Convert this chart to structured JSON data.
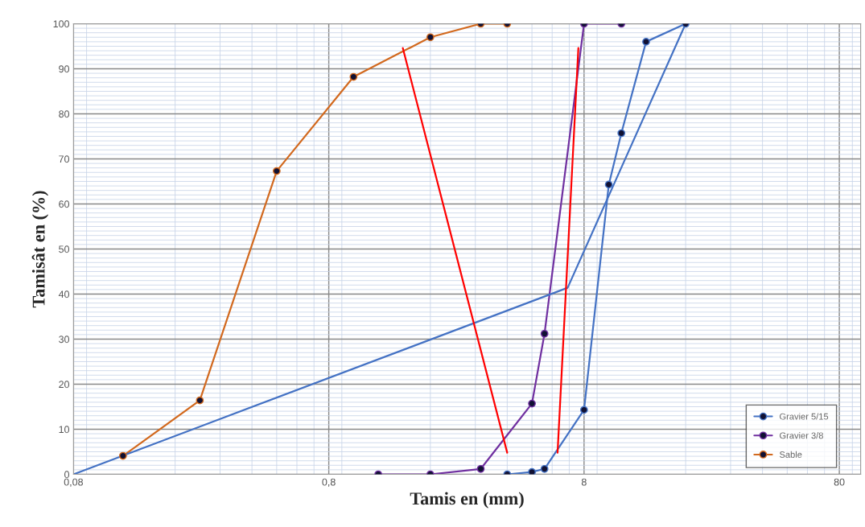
{
  "chart_data": {
    "type": "line",
    "xlabel": "Tamis en (mm)",
    "ylabel": "Tamisât en (%)",
    "log": "x",
    "xlim": [
      0.08,
      97
    ],
    "xticks": [
      {
        "value": 0.08,
        "label": "0,08"
      },
      {
        "value": 0.8,
        "label": "0,8"
      },
      8,
      80
    ],
    "ylim": [
      0,
      100
    ],
    "yticks": [
      0,
      10,
      20,
      30,
      40,
      50,
      60,
      70,
      80,
      90,
      100
    ],
    "grid": true,
    "legend": "bottom right",
    "marker": "circle",
    "series": [
      {
        "name": "Gravier 5/15",
        "color": "#4472c4",
        "x": [
          4,
          5,
          5.6,
          8,
          10,
          11.2,
          14,
          20
        ],
        "values": [
          0,
          0.5,
          1.2,
          14.3,
          64.3,
          75.7,
          96,
          100
        ]
      },
      {
        "name": "Gravier 3/8",
        "color": "#7030a0",
        "x": [
          1.25,
          2,
          3.15,
          5,
          5.6,
          8,
          11.2
        ],
        "values": [
          0,
          0,
          1.2,
          15.7,
          31.2,
          100,
          100
        ]
      },
      {
        "name": "Sable",
        "color": "#d2691e",
        "x": [
          0.125,
          0.25,
          0.5,
          1,
          2,
          3.15,
          4
        ],
        "values": [
          4.1,
          16.4,
          67.3,
          88.2,
          97,
          100,
          100
        ]
      },
      {
        "color": "#4472c4",
        "marker": "none",
        "x": [
          0.08,
          6.9,
          20
        ],
        "values": [
          0,
          41.4,
          100
        ]
      },
      {
        "color": "#ff0000",
        "marker": "none",
        "x": [
          1.56,
          4
        ],
        "values": [
          94.6,
          4.8
        ]
      },
      {
        "color": "#ff0000",
        "marker": "none",
        "x": [
          6.3,
          7.6
        ],
        "values": [
          4.8,
          94.6
        ]
      }
    ]
  }
}
